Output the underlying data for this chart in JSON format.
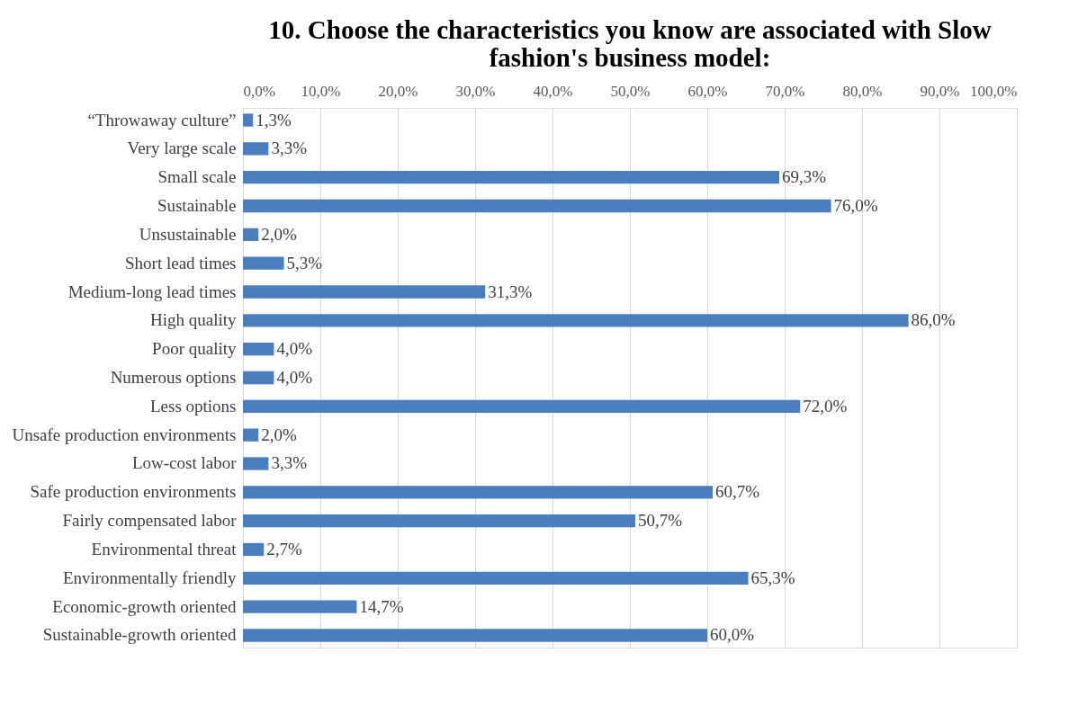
{
  "chart_data": {
    "type": "bar",
    "orientation": "horizontal",
    "title": "10. Choose the characteristics you know are associated with Slow fashion's business model:",
    "categories": [
      "“Throwaway culture”",
      "Very large scale",
      "Small scale",
      "Sustainable",
      "Unsustainable",
      "Short lead times",
      "Medium-long lead times",
      "High quality",
      "Poor quality",
      "Numerous options",
      "Less options",
      "Unsafe production environments",
      "Low-cost labor",
      "Safe production environments",
      "Fairly compensated labor",
      "Environmental threat",
      "Environmentally friendly",
      "Economic-growth oriented",
      "Sustainable-growth oriented"
    ],
    "values": [
      1.3,
      3.3,
      69.3,
      76.0,
      2.0,
      5.3,
      31.3,
      86.0,
      4.0,
      4.0,
      72.0,
      2.0,
      3.3,
      60.7,
      50.7,
      2.7,
      65.3,
      14.7,
      60.0
    ],
    "value_labels": [
      "1,3%",
      "3,3%",
      "69,3%",
      "76,0%",
      "2,0%",
      "5,3%",
      "31,3%",
      "86,0%",
      "4,0%",
      "4,0%",
      "72,0%",
      "2,0%",
      "3,3%",
      "60,7%",
      "50,7%",
      "2,7%",
      "65,3%",
      "14,7%",
      "60,0%"
    ],
    "color": "#4a7ebf",
    "xlim": [
      0,
      100
    ],
    "xticks": [
      {
        "value": 0,
        "label": "0,0%"
      },
      {
        "value": 10,
        "label": "10,0%"
      },
      {
        "value": 20,
        "label": "20,0%"
      },
      {
        "value": 30,
        "label": "30,0%"
      },
      {
        "value": 40,
        "label": "40,0%"
      },
      {
        "value": 50,
        "label": "50,0%"
      },
      {
        "value": 60,
        "label": "60,0%"
      },
      {
        "value": 70,
        "label": "70,0%"
      },
      {
        "value": 80,
        "label": "80,0%"
      },
      {
        "value": 90,
        "label": "90,0%"
      },
      {
        "value": 100,
        "label": "100,0%"
      }
    ],
    "grid": "x"
  }
}
